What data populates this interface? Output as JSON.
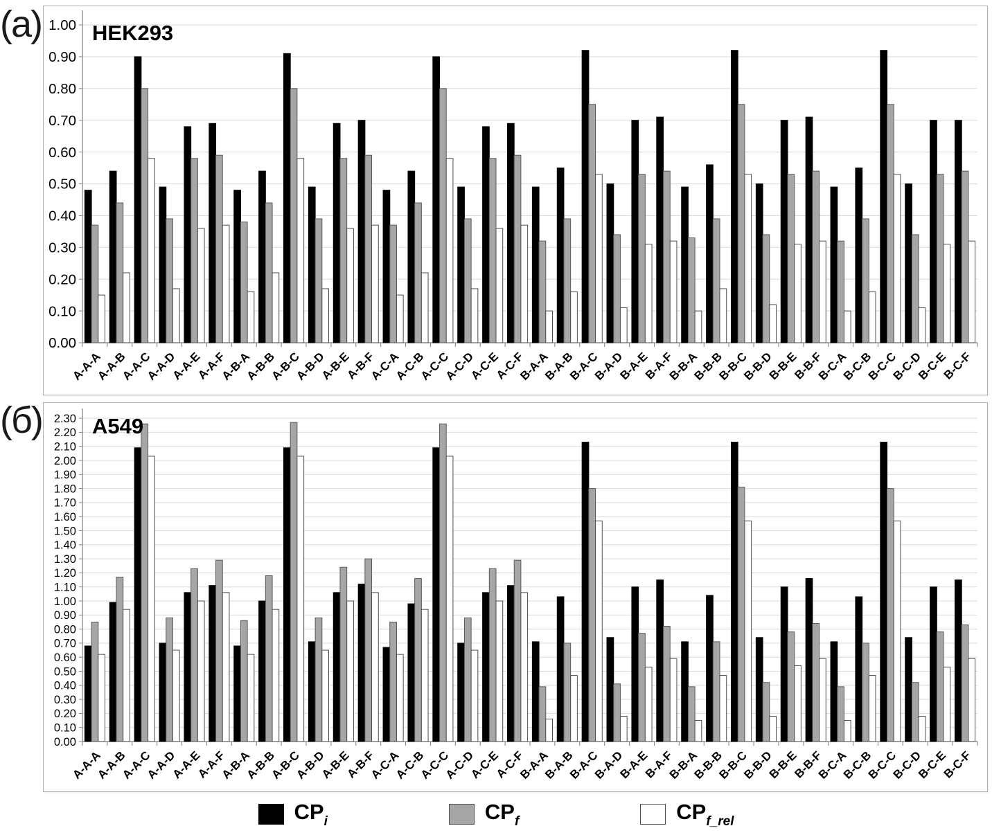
{
  "figure": {
    "panel_a_label": "(a)",
    "panel_b_label": "(б)"
  },
  "legend": {
    "items": [
      {
        "label": "CP_i",
        "base": "CP",
        "sub": "i",
        "color": "#000000"
      },
      {
        "label": "CP_f",
        "base": "CP",
        "sub": "f",
        "color": "#a6a6a6"
      },
      {
        "label": "CP_f_rel",
        "base": "CP",
        "sub": "f_rel",
        "color": "#ffffff"
      }
    ]
  },
  "chart_data": [
    {
      "type": "bar",
      "panel": "(a)",
      "title": "HEK293",
      "grid": true,
      "legend_position": "bottom",
      "ylim": [
        0.0,
        1.0
      ],
      "ytick_step": 0.1,
      "yticks": [
        "0.00",
        "0.10",
        "0.20",
        "0.30",
        "0.40",
        "0.50",
        "0.60",
        "0.70",
        "0.80",
        "0.90",
        "1.00"
      ],
      "categories": [
        "A-A-A",
        "A-A-B",
        "A-A-C",
        "A-A-D",
        "A-A-E",
        "A-A-F",
        "A-B-A",
        "A-B-B",
        "A-B-C",
        "A-B-D",
        "A-B-E",
        "A-B-F",
        "A-C-A",
        "A-C-B",
        "A-C-C",
        "A-C-D",
        "A-C-E",
        "A-C-F",
        "B-A-A",
        "B-A-B",
        "B-A-C",
        "B-A-D",
        "B-A-E",
        "B-A-F",
        "B-B-A",
        "B-B-B",
        "B-B-C",
        "B-B-D",
        "B-B-E",
        "B-B-F",
        "B-C-A",
        "B-C-B",
        "B-C-C",
        "B-C-D",
        "B-C-E",
        "B-C-F"
      ],
      "series": [
        {
          "name": "CP_i",
          "color": "#000000",
          "edge": "#000000",
          "values": [
            0.48,
            0.54,
            0.9,
            0.49,
            0.68,
            0.69,
            0.48,
            0.54,
            0.91,
            0.49,
            0.69,
            0.7,
            0.48,
            0.54,
            0.9,
            0.49,
            0.68,
            0.69,
            0.49,
            0.55,
            0.92,
            0.5,
            0.7,
            0.71,
            0.49,
            0.56,
            0.92,
            0.5,
            0.7,
            0.71,
            0.49,
            0.55,
            0.92,
            0.5,
            0.7,
            0.7
          ]
        },
        {
          "name": "CP_f",
          "color": "#a6a6a6",
          "edge": "#595959",
          "values": [
            0.37,
            0.44,
            0.8,
            0.39,
            0.58,
            0.59,
            0.38,
            0.44,
            0.8,
            0.39,
            0.58,
            0.59,
            0.37,
            0.44,
            0.8,
            0.39,
            0.58,
            0.59,
            0.32,
            0.39,
            0.75,
            0.34,
            0.53,
            0.54,
            0.33,
            0.39,
            0.75,
            0.34,
            0.53,
            0.54,
            0.32,
            0.39,
            0.75,
            0.34,
            0.53,
            0.54
          ]
        },
        {
          "name": "CP_f_rel",
          "color": "#ffffff",
          "edge": "#4d4d4d",
          "values": [
            0.15,
            0.22,
            0.58,
            0.17,
            0.36,
            0.37,
            0.16,
            0.22,
            0.58,
            0.17,
            0.36,
            0.37,
            0.15,
            0.22,
            0.58,
            0.17,
            0.36,
            0.37,
            0.1,
            0.16,
            0.53,
            0.11,
            0.31,
            0.32,
            0.1,
            0.17,
            0.53,
            0.12,
            0.31,
            0.32,
            0.1,
            0.16,
            0.53,
            0.11,
            0.31,
            0.32
          ]
        }
      ]
    },
    {
      "type": "bar",
      "panel": "(б)",
      "title": "A549",
      "grid": true,
      "legend_position": "bottom",
      "ylim": [
        0.0,
        2.3
      ],
      "ytick_step": 0.1,
      "yticks": [
        "0.00",
        "0.10",
        "0.20",
        "0.30",
        "0.40",
        "0.50",
        "0.60",
        "0.70",
        "0.80",
        "0.90",
        "1.00",
        "1.10",
        "1.20",
        "1.30",
        "1.40",
        "1.50",
        "1.60",
        "1.70",
        "1.80",
        "1.90",
        "2.00",
        "2.10",
        "2.20",
        "2.30"
      ],
      "categories": [
        "A-A-A",
        "A-A-B",
        "A-A-C",
        "A-A-D",
        "A-A-E",
        "A-A-F",
        "A-B-A",
        "A-B-B",
        "A-B-C",
        "A-B-D",
        "A-B-E",
        "A-B-F",
        "A-C-A",
        "A-C-B",
        "A-C-C",
        "A-C-D",
        "A-C-E",
        "A-C-F",
        "B-A-A",
        "B-A-B",
        "B-A-C",
        "B-A-D",
        "B-A-E",
        "B-A-F",
        "B-B-A",
        "B-B-B",
        "B-B-C",
        "B-B-D",
        "B-B-E",
        "B-B-F",
        "B-C-A",
        "B-C-B",
        "B-C-C",
        "B-C-D",
        "B-C-E",
        "B-C-F"
      ],
      "series": [
        {
          "name": "CP_i",
          "color": "#000000",
          "edge": "#000000",
          "values": [
            0.68,
            0.99,
            2.09,
            0.7,
            1.06,
            1.11,
            0.68,
            1.0,
            2.09,
            0.71,
            1.06,
            1.12,
            0.67,
            0.98,
            2.09,
            0.7,
            1.06,
            1.11,
            0.71,
            1.03,
            2.13,
            0.74,
            1.1,
            1.15,
            0.71,
            1.04,
            2.13,
            0.74,
            1.1,
            1.16,
            0.71,
            1.03,
            2.13,
            0.74,
            1.1,
            1.15
          ]
        },
        {
          "name": "CP_f",
          "color": "#a6a6a6",
          "edge": "#595959",
          "values": [
            0.85,
            1.17,
            2.26,
            0.88,
            1.23,
            1.29,
            0.86,
            1.18,
            2.27,
            0.88,
            1.24,
            1.3,
            0.85,
            1.16,
            2.26,
            0.88,
            1.23,
            1.29,
            0.39,
            0.7,
            1.8,
            0.41,
            0.77,
            0.82,
            0.39,
            0.71,
            1.81,
            0.42,
            0.78,
            0.84,
            0.39,
            0.7,
            1.8,
            0.42,
            0.78,
            0.83
          ]
        },
        {
          "name": "CP_f_rel",
          "color": "#ffffff",
          "edge": "#4d4d4d",
          "values": [
            0.62,
            0.94,
            2.03,
            0.65,
            1.0,
            1.06,
            0.62,
            0.94,
            2.03,
            0.65,
            1.0,
            1.06,
            0.62,
            0.94,
            2.03,
            0.65,
            1.0,
            1.06,
            0.16,
            0.47,
            1.57,
            0.18,
            0.53,
            0.59,
            0.15,
            0.47,
            1.57,
            0.18,
            0.54,
            0.59,
            0.15,
            0.47,
            1.57,
            0.18,
            0.53,
            0.59
          ]
        }
      ]
    }
  ]
}
